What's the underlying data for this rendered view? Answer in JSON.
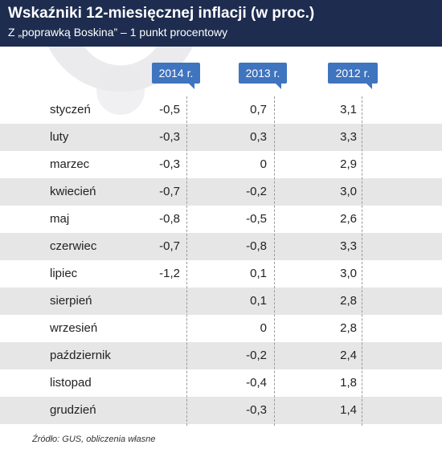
{
  "header": {
    "title": "Wskaźniki 12-miesięcznej inflacji (w proc.)",
    "subtitle": "Z „poprawką Boskina” – 1 punkt procentowy"
  },
  "colors": {
    "header_bg": "#1d2c4f",
    "badge_bg": "#3f74bf",
    "row_shade": "#e6e6e6"
  },
  "source": "Źródło: GUS, obliczenia własne",
  "chart_data": {
    "type": "table",
    "title": "Wskaźniki 12-miesięcznej inflacji (w proc.)",
    "subtitle": "Z „poprawką Boskina” – 1 punkt procentowy",
    "columns": [
      "2014 r.",
      "2013 r.",
      "2012 r."
    ],
    "rows": [
      {
        "month": "styczeń",
        "v2014": "-0,5",
        "v2013": "0,7",
        "v2012": "3,1"
      },
      {
        "month": "luty",
        "v2014": "-0,3",
        "v2013": "0,3",
        "v2012": "3,3"
      },
      {
        "month": "marzec",
        "v2014": "-0,3",
        "v2013": "0",
        "v2012": "2,9"
      },
      {
        "month": "kwiecień",
        "v2014": "-0,7",
        "v2013": "-0,2",
        "v2012": "3,0"
      },
      {
        "month": "maj",
        "v2014": "-0,8",
        "v2013": "-0,5",
        "v2012": "2,6"
      },
      {
        "month": "czerwiec",
        "v2014": "-0,7",
        "v2013": "-0,8",
        "v2012": "3,3"
      },
      {
        "month": "lipiec",
        "v2014": "-1,2",
        "v2013": "0,1",
        "v2012": "3,0"
      },
      {
        "month": "sierpień",
        "v2014": "",
        "v2013": "0,1",
        "v2012": "2,8"
      },
      {
        "month": "wrzesień",
        "v2014": "",
        "v2013": "0",
        "v2012": "2,8"
      },
      {
        "month": "październik",
        "v2014": "",
        "v2013": "-0,2",
        "v2012": "2,4"
      },
      {
        "month": "listopad",
        "v2014": "",
        "v2013": "-0,4",
        "v2012": "1,8"
      },
      {
        "month": "grudzień",
        "v2014": "",
        "v2013": "-0,3",
        "v2012": "1,4"
      }
    ],
    "shaded_rows": [
      1,
      3,
      5,
      7,
      9,
      11
    ]
  }
}
